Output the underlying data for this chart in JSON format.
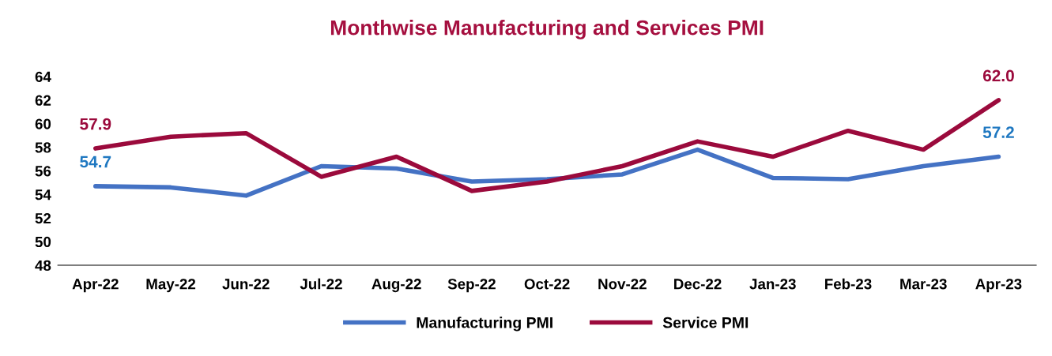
{
  "chart_data": {
    "type": "line",
    "title": "Monthwise Manufacturing and Services PMI",
    "categories": [
      "Apr-22",
      "May-22",
      "Jun-22",
      "Jul-22",
      "Aug-22",
      "Sep-22",
      "Oct-22",
      "Nov-22",
      "Dec-22",
      "Jan-23",
      "Feb-23",
      "Mar-23",
      "Apr-23"
    ],
    "series": [
      {
        "name": "Manufacturing PMI",
        "color": "#4472c4",
        "values": [
          54.7,
          54.6,
          53.9,
          56.4,
          56.2,
          55.1,
          55.3,
          55.7,
          57.8,
          55.4,
          55.3,
          56.4,
          57.2
        ],
        "value_labels": [
          "54.7",
          null,
          null,
          null,
          null,
          null,
          null,
          null,
          null,
          null,
          null,
          null,
          "57.2"
        ]
      },
      {
        "name": "Service PMI",
        "color": "#9b0a3c",
        "values": [
          57.9,
          58.9,
          59.2,
          55.5,
          57.2,
          54.3,
          55.1,
          56.4,
          58.5,
          57.2,
          59.4,
          57.8,
          62.0
        ],
        "value_labels": [
          "57.9",
          null,
          null,
          null,
          null,
          null,
          null,
          null,
          null,
          null,
          null,
          null,
          "62.0"
        ]
      }
    ],
    "ylim": [
      48,
      64
    ],
    "yticks": [
      48,
      50,
      52,
      54,
      56,
      58,
      60,
      62,
      64
    ],
    "grid": false,
    "legend": "bottom",
    "marker": "none",
    "line_style": "solid"
  }
}
